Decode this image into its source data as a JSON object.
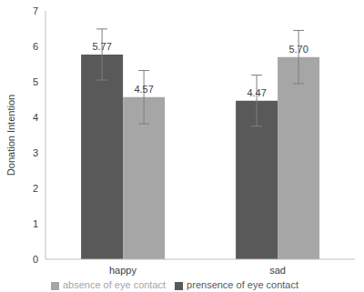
{
  "chart_data": {
    "type": "bar",
    "categories": [
      "happy",
      "sad"
    ],
    "series": [
      {
        "name": "prensence of eye contact",
        "color": "#595959",
        "values": [
          5.77,
          4.47
        ],
        "value_labels": [
          "5.77",
          "4.47"
        ],
        "errors": [
          0.72,
          0.72
        ]
      },
      {
        "name": "absence of eye contact",
        "color": "#a6a6a6",
        "values": [
          4.57,
          5.7
        ],
        "value_labels": [
          "4.57",
          "5.70"
        ],
        "errors": [
          0.75,
          0.75
        ]
      }
    ],
    "y_label": "Donation Intention",
    "ylim": [
      0,
      7
    ],
    "yticks": [
      0,
      1,
      2,
      3,
      4,
      5,
      6,
      7
    ],
    "grid": false,
    "legend": "bottom",
    "data_labels": true
  }
}
